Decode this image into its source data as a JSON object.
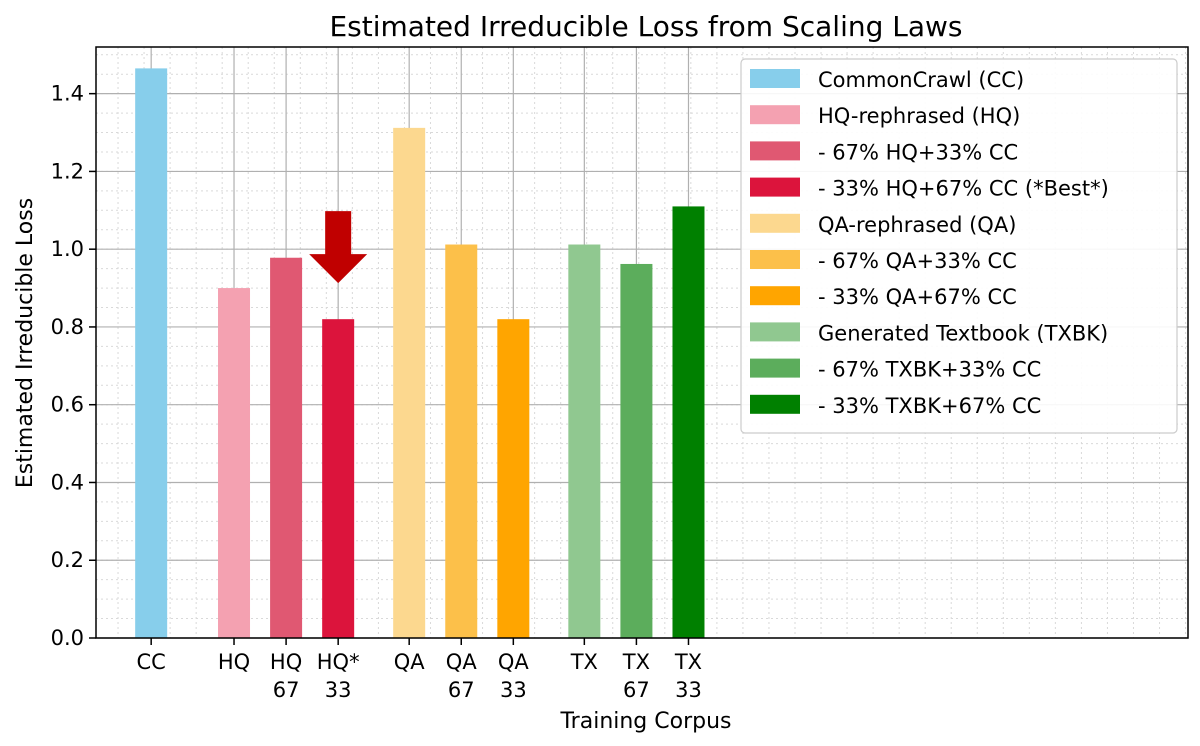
{
  "chart_data": {
    "type": "bar",
    "title": "Estimated Irreducible Loss from Scaling Laws",
    "xlabel": "Training Corpus",
    "ylabel": "Estimated Irreducible Loss",
    "ylim": [
      0,
      1.52
    ],
    "yticks": [
      "0.0",
      "0.2",
      "0.4",
      "0.6",
      "0.8",
      "1.0",
      "1.2",
      "1.4"
    ],
    "grid": true,
    "legend_position": "top-right",
    "highlight_marker": "down-arrow",
    "bars": [
      {
        "label_line1": "CC",
        "label_line2": "",
        "legend": "CommonCrawl (CC)",
        "value": 1.465,
        "color": "#87ceeb"
      },
      {
        "label_line1": "HQ",
        "label_line2": "",
        "legend": "HQ-rephrased (HQ)",
        "value": 0.9,
        "color": "#f4a1b1"
      },
      {
        "label_line1": "HQ",
        "label_line2": "67",
        "legend": "- 67% HQ+33% CC",
        "value": 0.978,
        "color": "#e05872"
      },
      {
        "label_line1": "HQ*",
        "label_line2": "33",
        "legend": "- 33% HQ+67% CC (*Best*)",
        "value": 0.82,
        "color": "#dc143c",
        "highlight": true
      },
      {
        "label_line1": "QA",
        "label_line2": "",
        "legend": "QA-rephrased (QA)",
        "value": 1.312,
        "color": "#fcd88f"
      },
      {
        "label_line1": "QA",
        "label_line2": "67",
        "legend": "- 67% QA+33% CC",
        "value": 1.012,
        "color": "#fcc04a"
      },
      {
        "label_line1": "QA",
        "label_line2": "33",
        "legend": "- 33% QA+67% CC",
        "value": 0.82,
        "color": "#ffa500"
      },
      {
        "label_line1": "TX",
        "label_line2": "",
        "legend": "Generated Textbook (TXBK)",
        "value": 1.012,
        "color": "#90c890"
      },
      {
        "label_line1": "TX",
        "label_line2": "67",
        "legend": "- 67% TXBK+33% CC",
        "value": 0.962,
        "color": "#5cad5c"
      },
      {
        "label_line1": "TX",
        "label_line2": "33",
        "legend": "- 33% TXBK+67% CC",
        "value": 1.11,
        "color": "#008000"
      }
    ]
  }
}
